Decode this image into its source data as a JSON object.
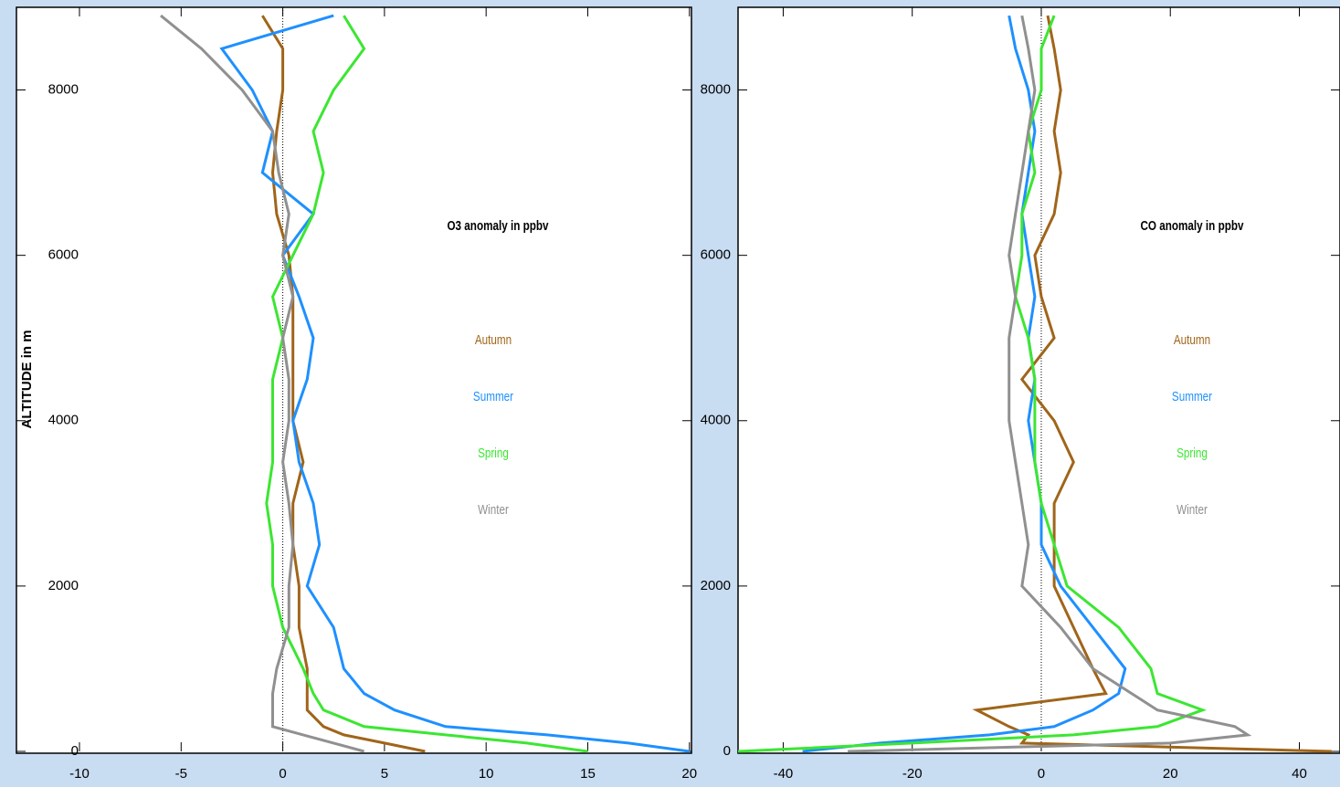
{
  "chart_data": [
    {
      "type": "line",
      "title": "O3 anomaly in ppbv",
      "y_label": "ALTITUDE in m",
      "y": [
        0,
        100,
        200,
        300,
        500,
        700,
        1000,
        1500,
        2000,
        2500,
        3000,
        3500,
        4000,
        4500,
        5000,
        5500,
        6000,
        6500,
        7000,
        7500,
        8000,
        8500,
        8900
      ],
      "series": [
        {
          "name": "Autumn",
          "color": "#a0651a",
          "values": [
            7,
            5,
            3,
            2,
            1.2,
            1.2,
            1.2,
            0.8,
            0.8,
            0.5,
            0.5,
            1,
            0.5,
            0.5,
            0.5,
            0.5,
            0.3,
            -0.3,
            -0.5,
            -0.3,
            0,
            0,
            -1
          ]
        },
        {
          "name": "Summer",
          "color": "#1e90ff",
          "values": [
            20,
            17,
            13,
            8,
            5.5,
            4,
            3,
            2.5,
            1.2,
            1.8,
            1.5,
            0.8,
            0.5,
            1.2,
            1.5,
            0.8,
            0,
            1.5,
            -1,
            -0.5,
            -1.5,
            -3,
            2.5
          ]
        },
        {
          "name": "Spring",
          "color": "#3ce632",
          "values": [
            15,
            12,
            8,
            4,
            2,
            1.5,
            1,
            0,
            -0.5,
            -0.5,
            -0.8,
            -0.5,
            -0.5,
            -0.5,
            0,
            -0.5,
            0.5,
            1.5,
            2,
            1.5,
            2.5,
            4,
            3
          ]
        },
        {
          "name": "Winter",
          "color": "#909090",
          "values": [
            4,
            2.5,
            1,
            -0.5,
            -0.5,
            -0.5,
            -0.3,
            0.3,
            0.3,
            0.5,
            0.3,
            0,
            0.3,
            0.3,
            0,
            0.5,
            0,
            0.3,
            -0.2,
            -0.5,
            -2,
            -4,
            -6
          ]
        }
      ],
      "xlim": [
        -13.1,
        20.1
      ],
      "xticks": [
        -10,
        -5,
        0,
        5,
        10,
        15,
        20
      ],
      "ylim": [
        0,
        9000
      ],
      "yticks": [
        0,
        2000,
        4000,
        6000,
        8000
      ]
    },
    {
      "type": "line",
      "title": "CO anomaly in ppbv",
      "y": [
        0,
        100,
        200,
        300,
        500,
        700,
        1000,
        1500,
        2000,
        2500,
        3000,
        3500,
        4000,
        4500,
        5000,
        5500,
        6000,
        6500,
        7000,
        7500,
        8000,
        8500,
        8900
      ],
      "series": [
        {
          "name": "Autumn",
          "color": "#a0651a",
          "values": [
            45,
            -3,
            -2,
            -5,
            -10,
            10,
            8,
            5,
            2,
            2,
            2,
            5,
            2,
            -3,
            2,
            0,
            -1,
            2,
            3,
            2,
            3,
            2,
            1
          ]
        },
        {
          "name": "Summer",
          "color": "#1e90ff",
          "values": [
            -37,
            -25,
            -8,
            2,
            8,
            12,
            13,
            8,
            3,
            0,
            0,
            -1,
            -2,
            -1,
            -2,
            -1,
            -2,
            -3,
            -2,
            -1,
            -2,
            -4,
            -5
          ]
        },
        {
          "name": "Spring",
          "color": "#3ce632",
          "values": [
            -47,
            -20,
            5,
            18,
            25,
            18,
            17,
            12,
            4,
            2,
            0,
            -1,
            -1,
            -1,
            -2,
            -4,
            -3,
            -3,
            -1,
            -2,
            0,
            0,
            2
          ]
        },
        {
          "name": "Winter",
          "color": "#909090",
          "values": [
            -30,
            20,
            32,
            30,
            18,
            14,
            8,
            3,
            -3,
            -2,
            -3,
            -4,
            -5,
            -5,
            -5,
            -4,
            -5,
            -4,
            -3,
            -2,
            -1,
            -2,
            -3
          ]
        }
      ],
      "xlim": [
        -47,
        46.3
      ],
      "xticks": [
        -40,
        -20,
        0,
        20,
        40
      ],
      "ylim": [
        0,
        9000
      ],
      "yticks": [
        0,
        2000,
        4000,
        6000,
        8000
      ]
    }
  ]
}
